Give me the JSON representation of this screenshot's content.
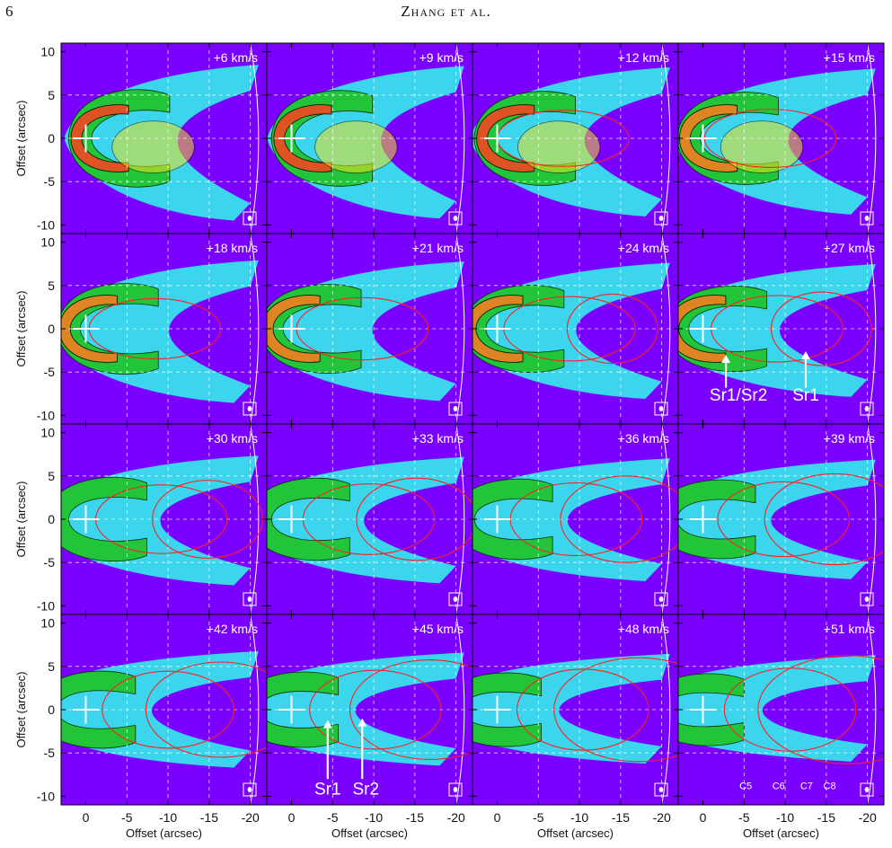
{
  "header": {
    "page_number": "6",
    "running_head": "Zhang et al."
  },
  "figure": {
    "panels": [
      {
        "velocity": "+6 km/s"
      },
      {
        "velocity": "+9 km/s"
      },
      {
        "velocity": "+12 km/s"
      },
      {
        "velocity": "+15 km/s"
      },
      {
        "velocity": "+18 km/s"
      },
      {
        "velocity": "+21 km/s"
      },
      {
        "velocity": "+24 km/s"
      },
      {
        "velocity": "+27 km/s"
      },
      {
        "velocity": "+30 km/s"
      },
      {
        "velocity": "+33 km/s"
      },
      {
        "velocity": "+36 km/s"
      },
      {
        "velocity": "+39 km/s"
      },
      {
        "velocity": "+42 km/s"
      },
      {
        "velocity": "+45 km/s"
      },
      {
        "velocity": "+48 km/s"
      },
      {
        "velocity": "+51 km/s"
      }
    ],
    "axes": {
      "xlabel": "Offset (arcsec)",
      "ylabel": "Offset (arcsec)",
      "xticks": [
        "0",
        "-5",
        "-10",
        "-15",
        "-20"
      ],
      "yticks": [
        "10",
        "5",
        "0",
        "-5",
        "-10"
      ]
    },
    "annotations": {
      "panel_27": [
        "Sr1/Sr2",
        "Sr1"
      ],
      "panel_45": [
        "Sr1",
        "Sr2"
      ],
      "panel_51": [
        "C5",
        "C6",
        "C7",
        "C8"
      ]
    },
    "colors": {
      "background": "#7a00ff",
      "ellipse": "#ff2020",
      "grid": "#ffffff"
    }
  }
}
